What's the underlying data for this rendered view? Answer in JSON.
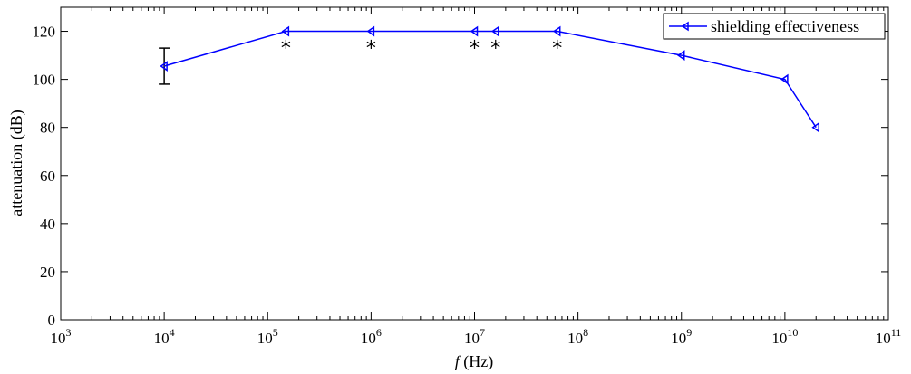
{
  "chart_data": {
    "type": "line",
    "x_scale": "log",
    "xlabel_italic": "f",
    "xlabel_unit": " (Hz)",
    "ylabel": "attenuation (dB)",
    "xlim": [
      1000,
      100000000000
    ],
    "ylim": [
      0,
      130
    ],
    "x_ticks_exponents": [
      3,
      4,
      5,
      6,
      7,
      8,
      9,
      10,
      11
    ],
    "x_tick_base": "10",
    "y_ticks": [
      0,
      20,
      40,
      60,
      80,
      100,
      120
    ],
    "grid": false,
    "legend_position": "top-right",
    "series": [
      {
        "name": "shielding effectiveness",
        "color": "#0000ff",
        "marker": "triangle-left",
        "x": [
          10000,
          150000,
          1000000,
          10000000,
          16000000,
          63000000,
          1000000000,
          10000000000,
          20000000000
        ],
        "y": [
          105.5,
          120,
          120,
          120,
          120,
          120,
          110,
          100,
          80
        ]
      }
    ],
    "error_bars": [
      {
        "x": 10000,
        "y": 105.5,
        "low": 98,
        "high": 113
      }
    ],
    "annotations": [
      {
        "text": "*",
        "x": 150000,
        "y": 120
      },
      {
        "text": "*",
        "x": 1000000,
        "y": 120
      },
      {
        "text": "*",
        "x": 10000000,
        "y": 120
      },
      {
        "text": "*",
        "x": 16000000,
        "y": 120
      },
      {
        "text": "*",
        "x": 63000000,
        "y": 120
      }
    ]
  }
}
